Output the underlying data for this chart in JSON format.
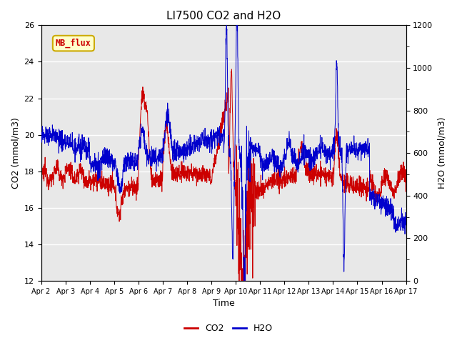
{
  "title": "LI7500 CO2 and H2O",
  "xlabel": "Time",
  "ylabel_left": "CO2 (mmol/m3)",
  "ylabel_right": "H2O (mmol/m3)",
  "xlim": [
    0,
    15
  ],
  "ylim_left": [
    12,
    26
  ],
  "ylim_right": [
    0,
    1200
  ],
  "yticks_left": [
    12,
    14,
    16,
    18,
    20,
    22,
    24,
    26
  ],
  "yticks_right": [
    0,
    200,
    400,
    600,
    800,
    1000,
    1200
  ],
  "xtick_labels": [
    "Apr 2",
    "Apr 3",
    "Apr 4",
    "Apr 5",
    "Apr 6",
    "Apr 7",
    "Apr 8",
    "Apr 9",
    "Apr 10",
    "Apr 11",
    "Apr 12",
    "Apr 13",
    "Apr 14",
    "Apr 15",
    "Apr 16",
    "Apr 17"
  ],
  "co2_color": "#cc0000",
  "h2o_color": "#0000cc",
  "figure_facecolor": "#ffffff",
  "axes_facecolor": "#e8e8e8",
  "grid_color": "#ffffff",
  "annotation_text": "MB_flux",
  "annotation_color": "#cc0000",
  "annotation_bg": "#ffffcc",
  "annotation_border": "#ccaa00",
  "legend_co2": "CO2",
  "legend_h2o": "H2O",
  "title_fontsize": 11,
  "label_fontsize": 9,
  "tick_fontsize": 8
}
